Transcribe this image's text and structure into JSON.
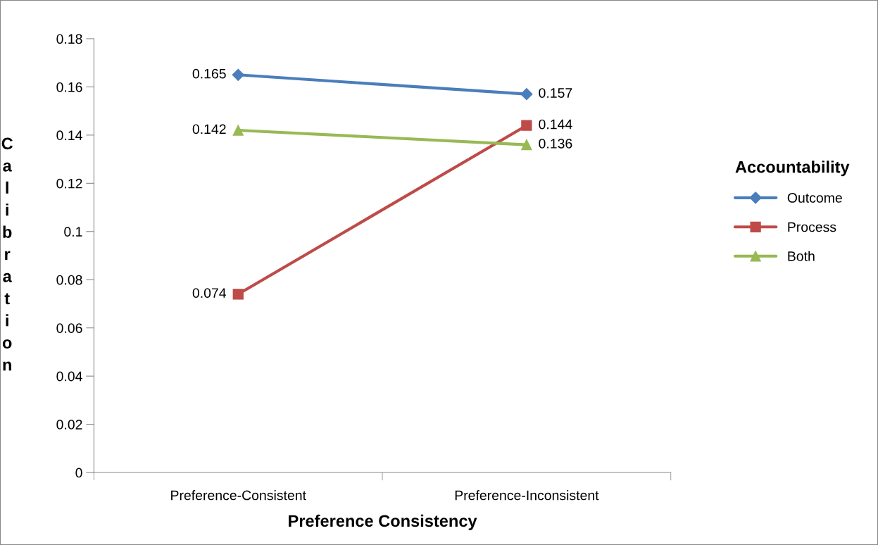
{
  "chart_data": {
    "type": "line",
    "xlabel": "Preference Consistency",
    "ylabel": "Calibration",
    "legend_title": "Accountability",
    "categories": [
      "Preference-Consistent",
      "Preference-Inconsistent"
    ],
    "series": [
      {
        "name": "Outcome",
        "color": "#4a7ebb",
        "marker": "diamond",
        "values": [
          0.165,
          0.157
        ]
      },
      {
        "name": "Process",
        "color": "#be4b48",
        "marker": "square",
        "values": [
          0.074,
          0.144
        ]
      },
      {
        "name": "Both",
        "color": "#98b954",
        "marker": "triangle",
        "values": [
          0.142,
          0.136
        ]
      }
    ],
    "ylim": [
      0,
      0.18
    ],
    "yticks": [
      0,
      0.02,
      0.04,
      0.06,
      0.08,
      0.1,
      0.12,
      0.14,
      0.16,
      0.18
    ],
    "data_labels": true,
    "grid": false,
    "legend": "right",
    "line_style": "solid"
  }
}
